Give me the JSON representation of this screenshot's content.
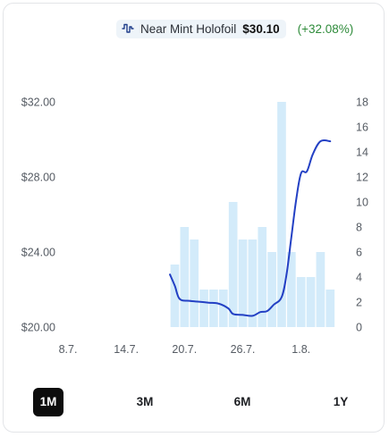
{
  "legend": {
    "label": "Near Mint Holofoil",
    "price": "$30.10",
    "change": "(+32.08%)",
    "icon": "line-chart-icon"
  },
  "range_buttons": [
    {
      "label": "1M",
      "active": true
    },
    {
      "label": "3M",
      "active": false
    },
    {
      "label": "6M",
      "active": false
    },
    {
      "label": "1Y",
      "active": false
    }
  ],
  "colors": {
    "line": "#2340c4",
    "bars": "#d3ebfa",
    "change": "#2e8b3a",
    "active_button": "#0d0d0d"
  },
  "chart_data": {
    "type": "line+bar",
    "x_tick_labels": [
      "8.7.",
      "14.7.",
      "20.7.",
      "26.7.",
      "1.8."
    ],
    "x_tick_days": [
      0,
      6,
      12,
      18,
      24
    ],
    "x_range_days": [
      0,
      29
    ],
    "y_left": {
      "ticks": [
        "$20.00",
        "$24.00",
        "$28.00",
        "$32.00"
      ],
      "tick_values": [
        20,
        24,
        28,
        32
      ],
      "range": [
        20,
        32
      ]
    },
    "y_right": {
      "ticks": [
        "0",
        "2",
        "4",
        "6",
        "8",
        "10",
        "12",
        "14",
        "16",
        "18"
      ],
      "tick_values": [
        0,
        2,
        4,
        6,
        8,
        10,
        12,
        14,
        16,
        18
      ],
      "range": [
        0,
        18
      ]
    },
    "grid": false,
    "series": [
      {
        "name": "Near Mint Holofoil",
        "kind": "line",
        "axis": "left",
        "points": [
          [
            10.5,
            22.8
          ],
          [
            11.0,
            22.2
          ],
          [
            11.5,
            21.5
          ],
          [
            12.5,
            21.4
          ],
          [
            13.5,
            21.35
          ],
          [
            14.5,
            21.3
          ],
          [
            15.5,
            21.25
          ],
          [
            16.5,
            21.0
          ],
          [
            17.0,
            20.7
          ],
          [
            18.0,
            20.65
          ],
          [
            19.0,
            20.6
          ],
          [
            19.8,
            20.8
          ],
          [
            20.5,
            20.85
          ],
          [
            21.2,
            21.2
          ],
          [
            22.0,
            21.6
          ],
          [
            22.5,
            22.8
          ],
          [
            23.0,
            24.8
          ],
          [
            23.5,
            26.8
          ],
          [
            24.0,
            28.2
          ],
          [
            24.6,
            28.3
          ],
          [
            25.2,
            29.2
          ],
          [
            26.0,
            29.9
          ],
          [
            27.0,
            29.9
          ]
        ]
      },
      {
        "name": "volume",
        "kind": "bar",
        "axis": "right",
        "x": [
          11,
          12,
          13,
          14,
          15,
          16,
          17,
          18,
          19,
          20,
          21,
          22,
          23,
          24,
          25,
          26,
          27
        ],
        "values": [
          5,
          8,
          7,
          3,
          3,
          3,
          10,
          7,
          7,
          8,
          6,
          18,
          6,
          4,
          4,
          6,
          3
        ]
      }
    ]
  }
}
